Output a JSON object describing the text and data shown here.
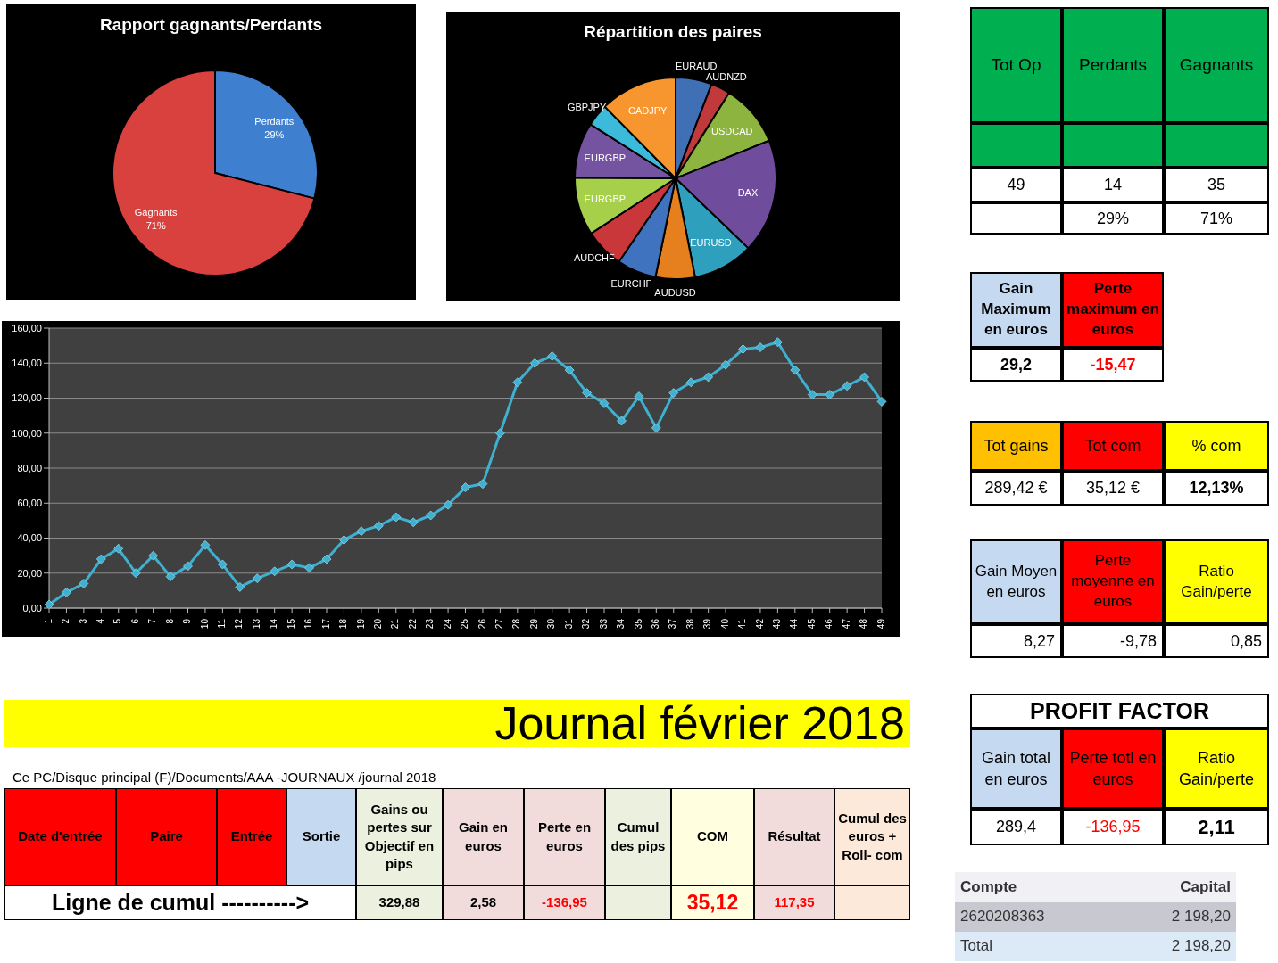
{
  "chart_data": [
    {
      "type": "pie",
      "title": "Rapport gagnants/Perdants",
      "categories": [
        "Perdants",
        "Gagnants"
      ],
      "values": [
        29,
        71
      ],
      "value_labels": [
        "29%",
        "71%"
      ],
      "colors": [
        "#3e7fd0",
        "#d9413e"
      ]
    },
    {
      "type": "pie",
      "title": "Répartition des paires",
      "categories": [
        "EURAUD",
        "AUDNZD",
        "USDCAD",
        "DAX",
        "EURUSD",
        "AUDUSD",
        "EURCHF",
        "AUDCHF",
        "EURGBP",
        "EURGBP",
        "GBPJPY",
        "CADJPY"
      ],
      "values": [
        5.8,
        3.1,
        10,
        18.3,
        9.7,
        6.3,
        6.3,
        6.3,
        9.3,
        8.9,
        3.6,
        12.4
      ],
      "colors": [
        "#3f6fb5",
        "#c0393b",
        "#8db43f",
        "#6f4d9c",
        "#2ea0bd",
        "#e6801f",
        "#3f73c0",
        "#c9373a",
        "#a6d04a",
        "#7453a0",
        "#3bbbd9",
        "#f7962f"
      ]
    },
    {
      "type": "line",
      "categories": [
        "1",
        "2",
        "3",
        "4",
        "5",
        "6",
        "7",
        "8",
        "9",
        "10",
        "11",
        "12",
        "13",
        "14",
        "15",
        "16",
        "17",
        "18",
        "19",
        "20",
        "21",
        "22",
        "23",
        "24",
        "25",
        "26",
        "27",
        "28",
        "29",
        "30",
        "31",
        "32",
        "33",
        "34",
        "35",
        "36",
        "37",
        "38",
        "39",
        "40",
        "41",
        "42",
        "43",
        "44",
        "45",
        "46",
        "47",
        "48",
        "49"
      ],
      "series": [
        {
          "color": "#3fb0d0",
          "values": [
            2,
            9,
            14,
            28,
            34,
            20,
            30,
            18,
            24,
            36,
            25,
            12,
            17,
            21,
            25,
            23,
            28,
            39,
            44,
            47,
            52,
            49,
            53,
            59,
            69,
            71,
            100,
            129,
            140,
            144,
            136,
            123,
            117,
            107,
            121,
            103,
            123,
            129,
            132,
            139,
            148,
            149,
            152,
            136,
            122,
            122,
            127,
            132,
            118
          ]
        }
      ],
      "ylim": [
        0,
        160
      ],
      "yticks": [
        {
          "value": 0,
          "label": "0,00"
        },
        {
          "value": 20,
          "label": "20,00"
        },
        {
          "value": 40,
          "label": "40,00"
        },
        {
          "value": 60,
          "label": "60,00"
        },
        {
          "value": 80,
          "label": "80,00"
        },
        {
          "value": 100,
          "label": "100,00"
        },
        {
          "value": 120,
          "label": "120,00"
        },
        {
          "value": 140,
          "label": "140,00"
        },
        {
          "value": 160,
          "label": "160,00"
        }
      ],
      "grid": "y",
      "marker": "diamond",
      "line_style": "solid"
    },
    {
      "type": "other",
      "annotations": [
        "Tot Op",
        "Perdants",
        "Gagnants",
        "49",
        "14",
        "35",
        "29%",
        "71%",
        "Gain Maximum en euros",
        "Perte maximum en euros",
        "29,2",
        "-15,47",
        "Tot gains",
        "Tot com",
        "% com",
        "289,42 €",
        "35,12 €",
        "12,13%",
        "Gain Moyen en euros",
        "Perte moyenne en euros",
        "Ratio Gain/perte",
        "8,27",
        "-9,78",
        "0,85",
        "PROFIT FACTOR",
        "Gain total en euros",
        "Perte totl en euros",
        "Ratio Gain/perte",
        "289,4",
        "-136,95",
        "2,11",
        "Compte",
        "Capital",
        "2620208363",
        "2 198,20",
        "Total",
        "2 198,20"
      ]
    },
    {
      "type": "other",
      "annotations": [
        "Journal février 2018",
        "Ce PC/Disque principal (F)/Documents/AAA -JOURNAUX /journal 2018",
        "Date d'entrée",
        "Paire",
        "Entrée",
        "Sortie",
        "Gains ou pertes sur Objectif en pips",
        "Gain en euros",
        "Perte en euros",
        "Cumul des pips",
        "COM",
        "Résultat",
        "Cumul des euros + Roll- com",
        "Ligne de cumul ---------->",
        "329,88",
        "2,58",
        "-136,95",
        "35,12",
        "117,35"
      ]
    }
  ]
}
